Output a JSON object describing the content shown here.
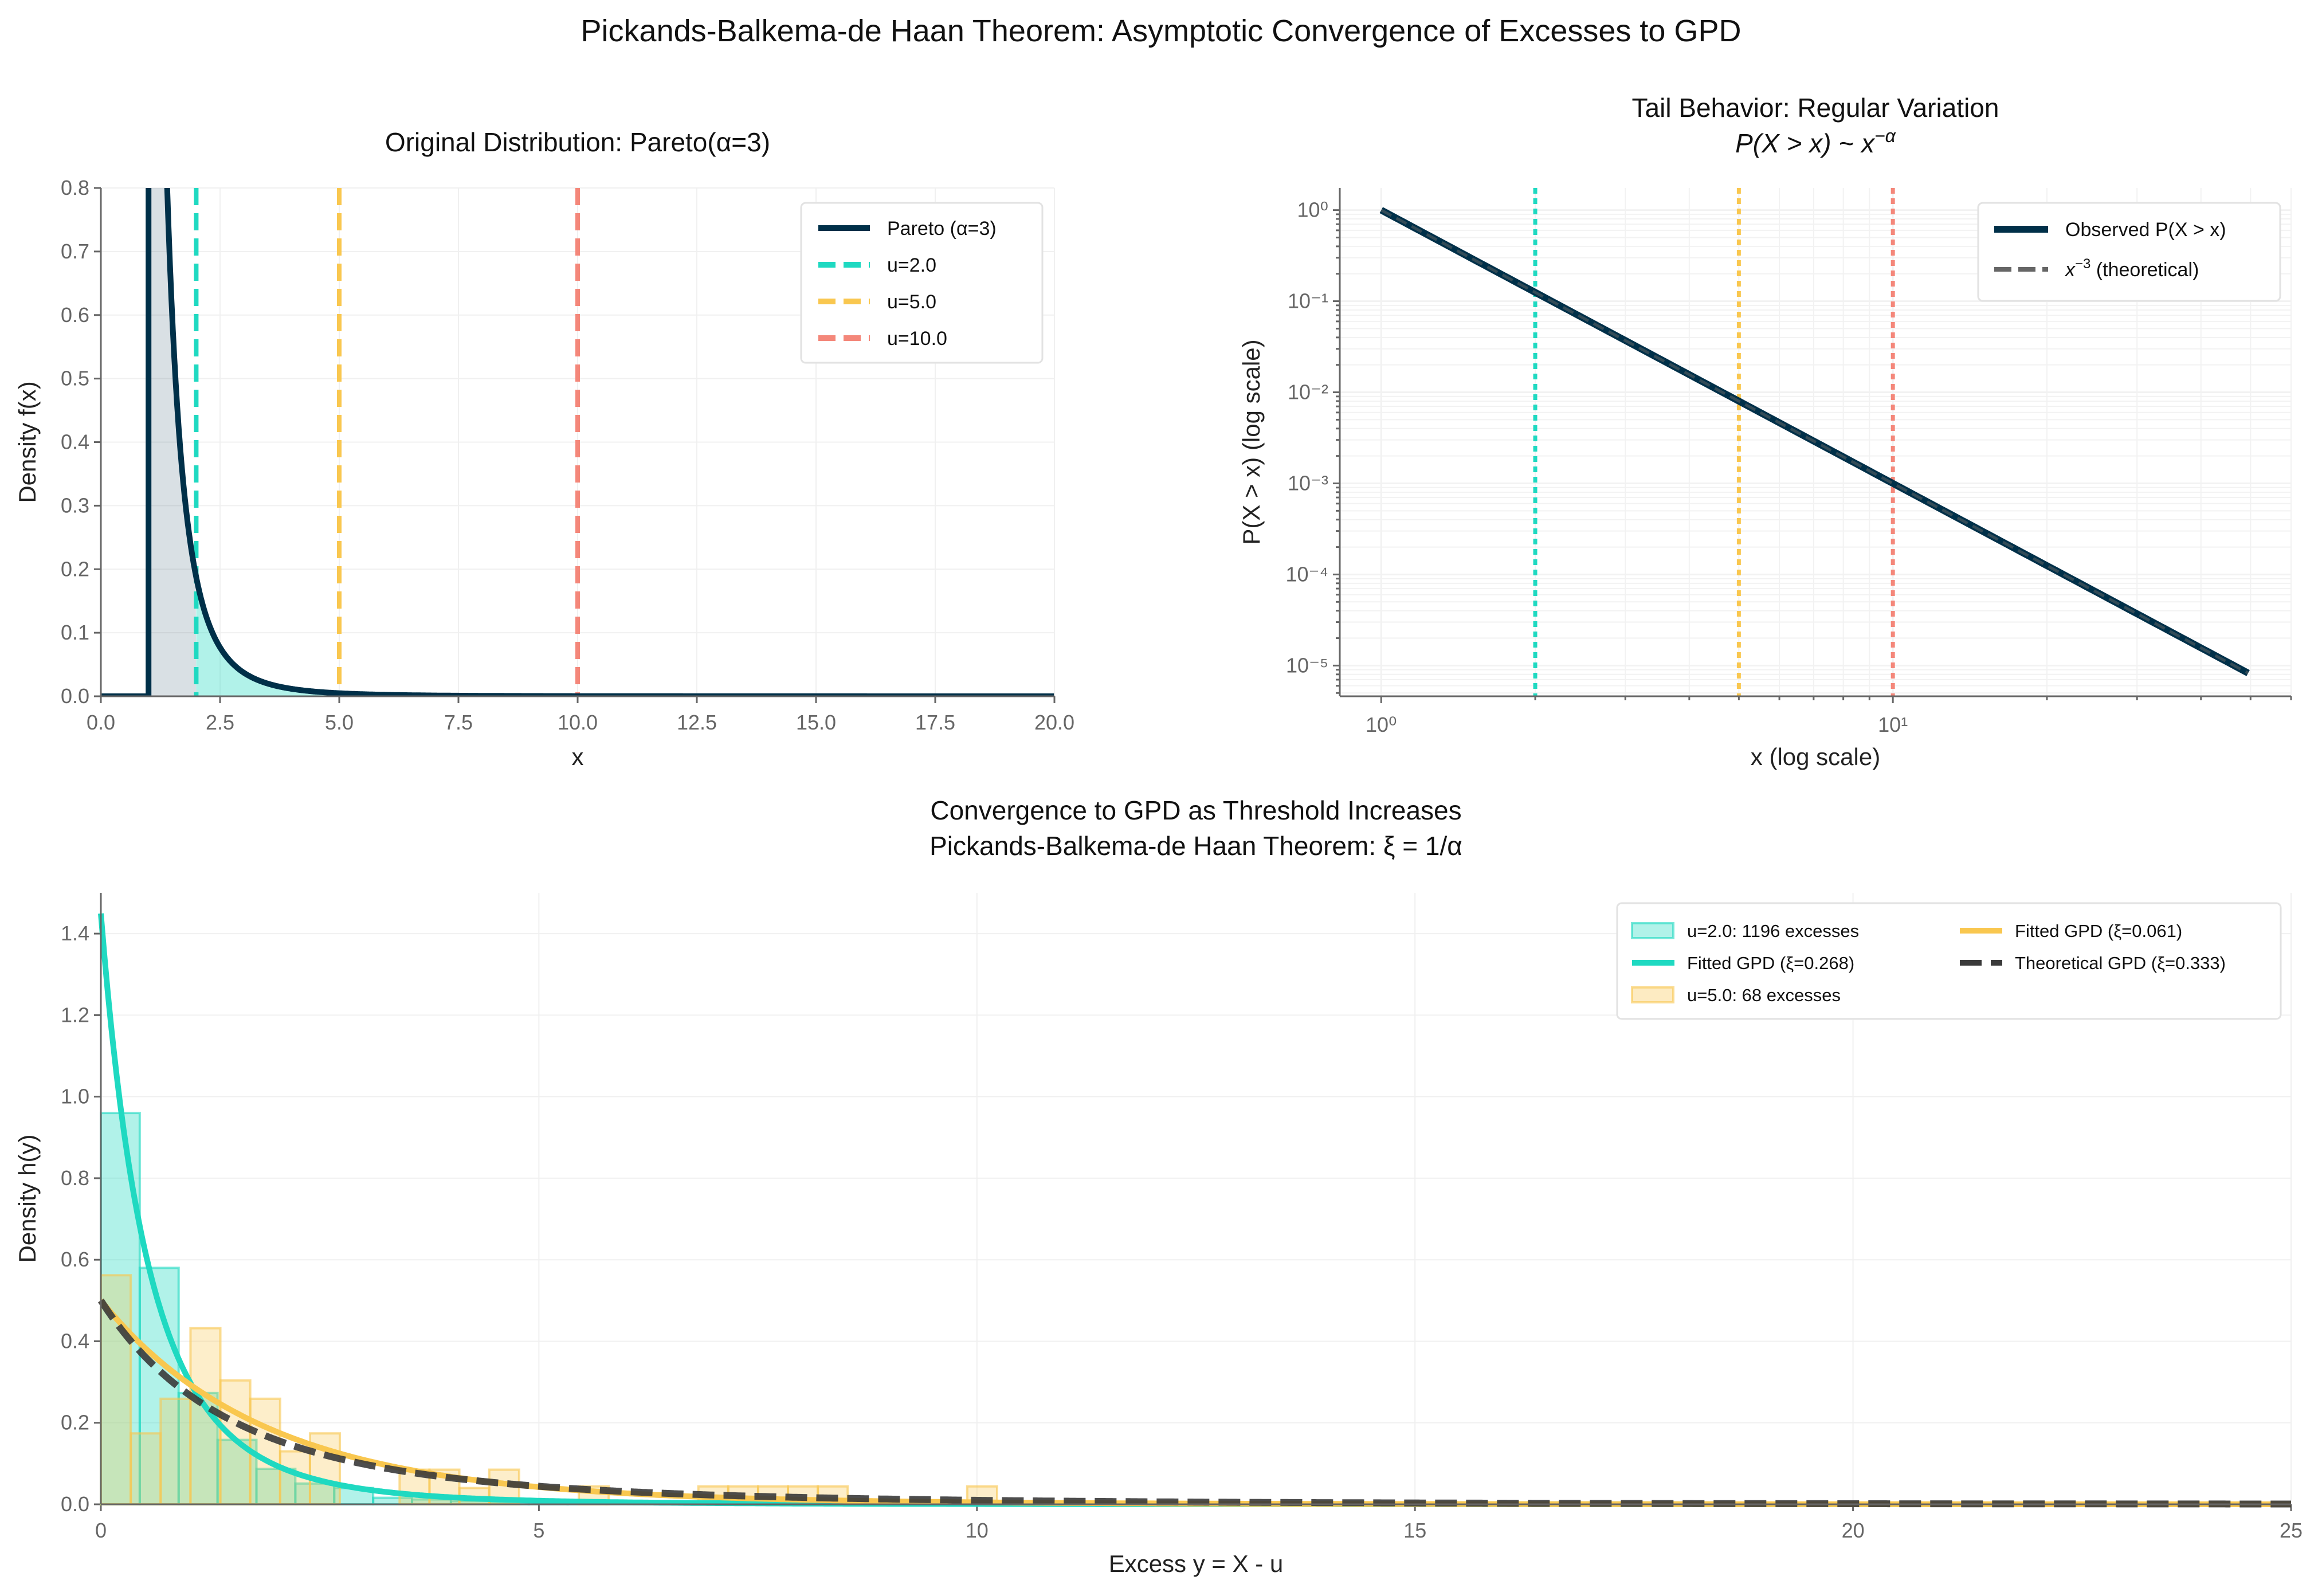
{
  "title": "Pickands-Balkema-de Haan Theorem: Asymptotic Convergence of Excesses to GPD",
  "colors": {
    "navy": "#003049",
    "teal": "#1fd9c1",
    "yellow": "#f9c74f",
    "salmon": "#f4877a",
    "dark": "#3a3a3a",
    "gray": "#666666"
  },
  "chart_data": [
    {
      "type": "line",
      "title": "Original Distribution: Pareto(α=3)",
      "xlabel": "x",
      "ylabel": "Density f(x)",
      "xlim": [
        0,
        20
      ],
      "ylim": [
        0,
        0.8
      ],
      "xticks": [
        "0.0",
        "2.5",
        "5.0",
        "7.5",
        "10.0",
        "12.5",
        "15.0",
        "17.5",
        "20.0"
      ],
      "yticks": [
        "0.0",
        "0.1",
        "0.2",
        "0.3",
        "0.4",
        "0.5",
        "0.6",
        "0.7",
        "0.8"
      ],
      "grid": true,
      "legend_placement": "upper-right",
      "alpha": 3,
      "series": [
        {
          "name": "Pareto (α=3)",
          "style": "solid",
          "color": "#003049"
        },
        {
          "name": "u=2.0",
          "style": "dashed-vertical",
          "x": 2.0,
          "color": "#1fd9c1"
        },
        {
          "name": "u=5.0",
          "style": "dashed-vertical",
          "x": 5.0,
          "color": "#f9c74f"
        },
        {
          "name": "u=10.0",
          "style": "dashed-vertical",
          "x": 10.0,
          "color": "#f4877a"
        }
      ]
    },
    {
      "type": "line",
      "title": "Tail Behavior: Regular Variation",
      "subtitle": {
        "base": "P(X > x) ~ x",
        "sup": "−α"
      },
      "xlabel": "x (log scale)",
      "ylabel": "P(X > x) (log scale)",
      "xscale": "log",
      "yscale": "log",
      "xlim": [
        0.83,
        60
      ],
      "ylim": [
        4.6e-06,
        1.75
      ],
      "xticks": [
        {
          "value": 1,
          "label": "10⁰"
        },
        {
          "value": 10,
          "label": "10¹"
        }
      ],
      "yticks": [
        {
          "value": 1,
          "label": "10⁰"
        },
        {
          "value": 0.1,
          "label": "10⁻¹"
        },
        {
          "value": 0.01,
          "label": "10⁻²"
        },
        {
          "value": 0.001,
          "label": "10⁻³"
        },
        {
          "value": 0.0001,
          "label": "10⁻⁴"
        },
        {
          "value": 1e-05,
          "label": "10⁻⁵"
        }
      ],
      "grid": true,
      "legend_placement": "upper-right",
      "x_range": [
        1,
        50
      ],
      "series": [
        {
          "name": "Observed P(X > x)",
          "style": "solid",
          "color": "#003049"
        },
        {
          "name_base": "x",
          "name_sup": "−3",
          "name_rest": " (theoretical)",
          "style": "dashed",
          "color": "#666666"
        }
      ],
      "vlines": [
        {
          "x": 2,
          "color": "#1fd9c1"
        },
        {
          "x": 5,
          "color": "#f9c74f"
        },
        {
          "x": 10,
          "color": "#f4877a"
        }
      ]
    },
    {
      "type": "bar",
      "title": "Convergence to GPD as Threshold Increases",
      "subtitle": "Pickands-Balkema-de Haan Theorem: ξ = 1/α",
      "xlabel": "Excess y = X - u",
      "ylabel": "Density h(y)",
      "xlim": [
        0,
        25
      ],
      "ylim": [
        0,
        1.5
      ],
      "xticks": [
        "0",
        "5",
        "10",
        "15",
        "20",
        "25"
      ],
      "yticks": [
        "0.0",
        "0.2",
        "0.4",
        "0.6",
        "0.8",
        "1.0",
        "1.2",
        "1.4"
      ],
      "grid": true,
      "legend_placement": "upper-right",
      "histograms": [
        {
          "name": "u=2.0: 1196 excesses",
          "color": "#1fd9c1",
          "bin_width": 0.444,
          "values": [
            0.96,
            0.58,
            0.273,
            0.158,
            0.087,
            0.051,
            0.04,
            0.016,
            0.012,
            0.008,
            0.006,
            0.004,
            0.003,
            0.002,
            0.002,
            0.001
          ]
        },
        {
          "name": "u=5.0: 68 excesses",
          "color": "#f9c74f",
          "bin_width": 0.341,
          "values": [
            0.562,
            0.174,
            0.259,
            0.432,
            0.304,
            0.259,
            0.13,
            0.174,
            0.0,
            0.0,
            0.085,
            0.085,
            0.04,
            0.085,
            0.0,
            0.0,
            0.044,
            0.0,
            0,
            0,
            0.044,
            0.044,
            0.044,
            0.044,
            0.044,
            0,
            0,
            0,
            0,
            0.044
          ]
        }
      ],
      "curves": [
        {
          "name": "Fitted GPD (ξ=0.268)",
          "xi": 0.268,
          "color": "#1fd9c1",
          "style": "solid"
        },
        {
          "name": "Fitted GPD (ξ=0.061)",
          "xi": 0.061,
          "color": "#f9c74f",
          "style": "solid"
        },
        {
          "name": "Theoretical GPD (ξ=0.333)",
          "xi": 0.333,
          "color": "#3a3a3a",
          "style": "dashed"
        }
      ]
    }
  ]
}
